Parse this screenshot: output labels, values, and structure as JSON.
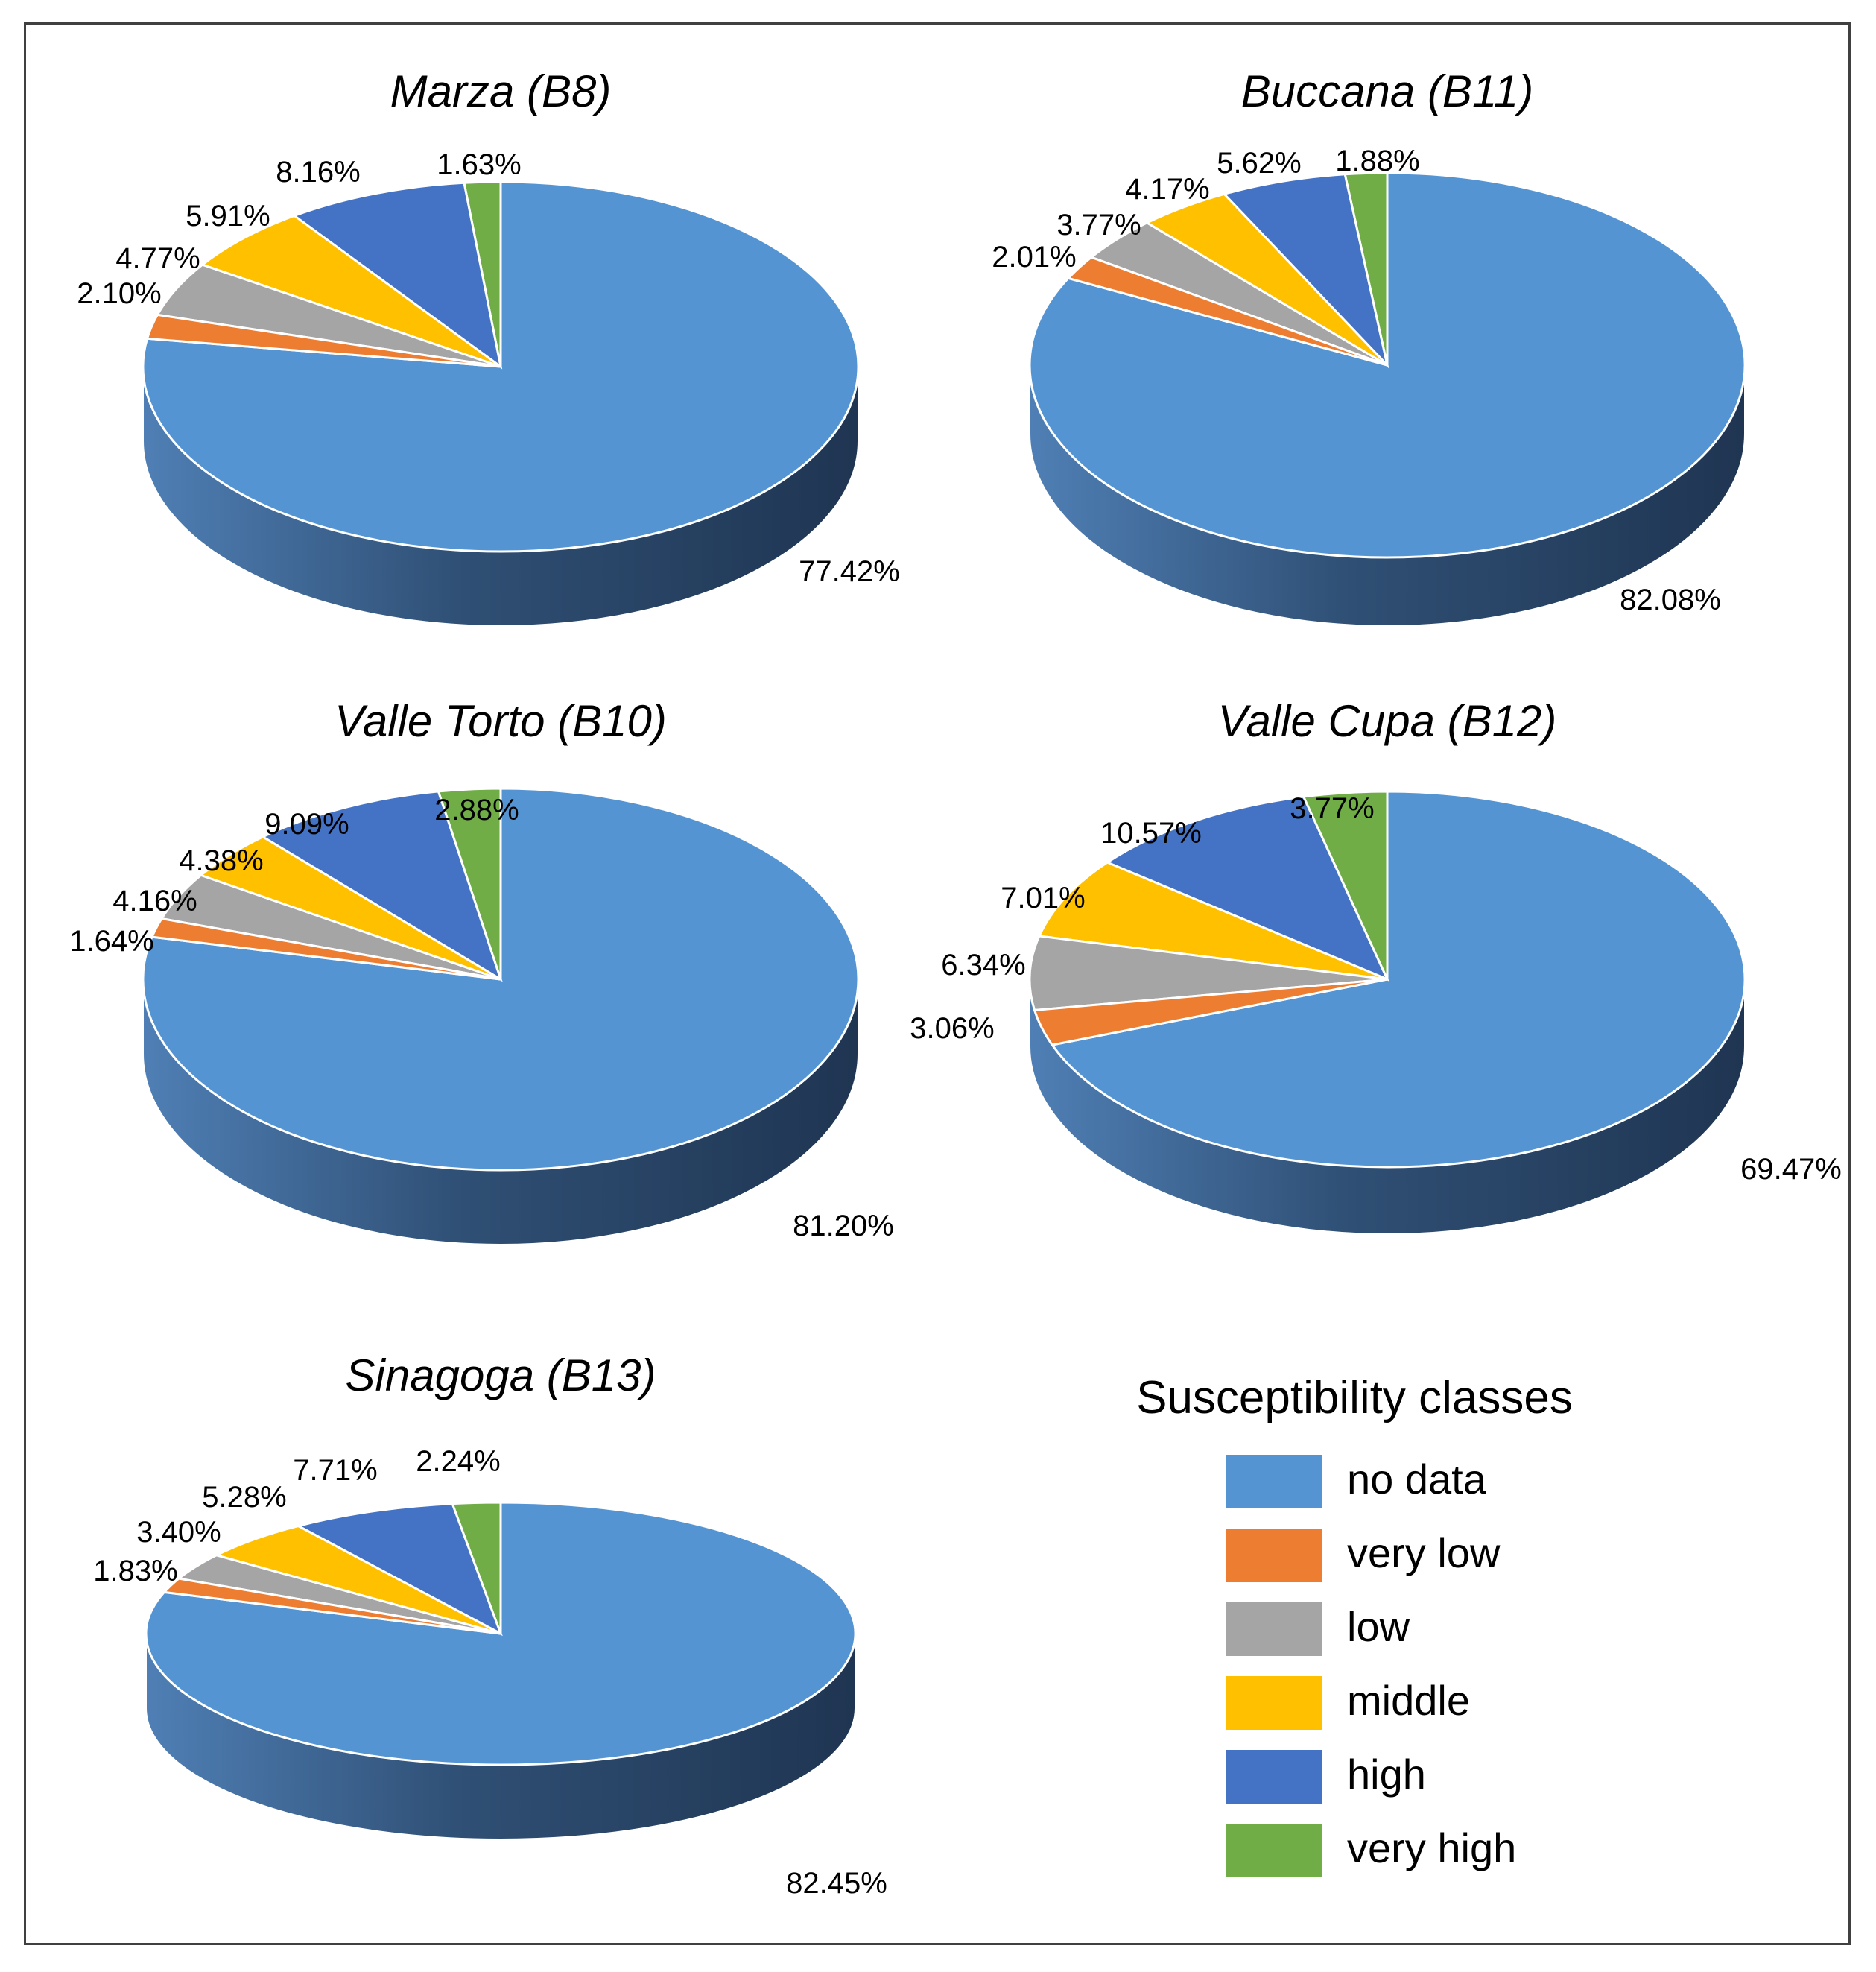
{
  "colors": {
    "no_data": "#5594d3",
    "very_low": "#ed7d31",
    "low": "#a5a5a5",
    "middle": "#ffc000",
    "high": "#4472c4",
    "very_high": "#70ad47"
  },
  "legend": {
    "title": "Susceptibility classes",
    "items": [
      {
        "key": "no_data",
        "label": "no data"
      },
      {
        "key": "very_low",
        "label": "very low"
      },
      {
        "key": "low",
        "label": "low"
      },
      {
        "key": "middle",
        "label": "middle"
      },
      {
        "key": "high",
        "label": "high"
      },
      {
        "key": "very_high",
        "label": "very high"
      }
    ]
  },
  "chart_data": [
    {
      "type": "pie",
      "title": "Marza (B8)",
      "categories": [
        "no data",
        "very low",
        "low",
        "middle",
        "high",
        "very high"
      ],
      "values": [
        77.42,
        2.1,
        4.77,
        5.91,
        8.16,
        1.63
      ],
      "labels": [
        "77.42%",
        "2.10%",
        "4.77%",
        "5.91%",
        "8.16%",
        "1.63%"
      ]
    },
    {
      "type": "pie",
      "title": "Buccana (B11)",
      "categories": [
        "no data",
        "very low",
        "low",
        "middle",
        "high",
        "very high"
      ],
      "values": [
        82.08,
        2.01,
        3.77,
        4.17,
        5.62,
        1.88
      ],
      "labels": [
        "82.08%",
        "2.01%",
        "3.77%",
        "4.17%",
        "5.62%",
        "1.88%"
      ]
    },
    {
      "type": "pie",
      "title": "Valle Torto (B10)",
      "categories": [
        "no data",
        "very low",
        "low",
        "middle",
        "high",
        "very high"
      ],
      "values": [
        81.2,
        1.64,
        4.16,
        4.38,
        9.09,
        2.88
      ],
      "labels": [
        "81.20%",
        "1.64%",
        "4.16%",
        "4.38%",
        "9.09%",
        "2.88%"
      ]
    },
    {
      "type": "pie",
      "title": "Valle Cupa (B12)",
      "categories": [
        "no data",
        "very low",
        "low",
        "middle",
        "high",
        "very high"
      ],
      "values": [
        69.47,
        3.06,
        6.34,
        7.01,
        10.57,
        3.77
      ],
      "labels": [
        "69.47%",
        "3.06%",
        "6.34%",
        "7.01%",
        "10.57%",
        "3.77%"
      ]
    },
    {
      "type": "pie",
      "title": "Sinagoga (B13)",
      "categories": [
        "no data",
        "very low",
        "low",
        "middle",
        "high",
        "very high"
      ],
      "values": [
        82.45,
        1.83,
        3.4,
        5.28,
        7.71,
        2.24
      ],
      "labels": [
        "82.45%",
        "1.83%",
        "3.40%",
        "5.28%",
        "7.71%",
        "2.24%"
      ]
    }
  ]
}
